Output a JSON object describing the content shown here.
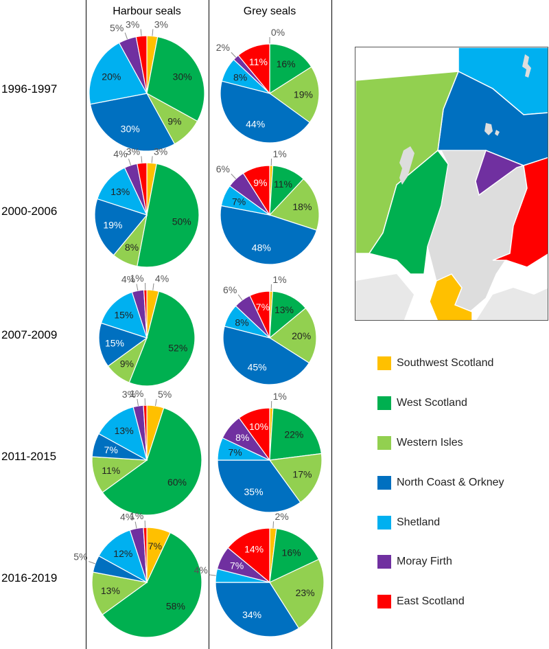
{
  "columns": [
    "Harbour seals",
    "Grey seals"
  ],
  "periods": [
    "1996-1997",
    "2000-2006",
    "2007-2009",
    "2011-2015",
    "2016-2019"
  ],
  "regions": [
    {
      "name": "Southwest Scotland",
      "color": "#FFC000"
    },
    {
      "name": "West Scotland",
      "color": "#00B050"
    },
    {
      "name": "Western Isles",
      "color": "#92D050"
    },
    {
      "name": "North Coast & Orkney",
      "color": "#0070C0"
    },
    {
      "name": "Shetland",
      "color": "#00B0F0"
    },
    {
      "name": "Moray Firth",
      "color": "#7030A0"
    },
    {
      "name": "East Scotland",
      "color": "#FF0000"
    }
  ],
  "chart_data": {
    "type": "pie",
    "categories": [
      "Southwest Scotland",
      "West Scotland",
      "Western Isles",
      "North Coast & Orkney",
      "Shetland",
      "Moray Firth",
      "East Scotland"
    ],
    "unit": "%",
    "series": [
      {
        "name": "Harbour seals",
        "period": "1996-1997",
        "values": [
          3,
          30,
          9,
          30,
          20,
          5,
          3
        ]
      },
      {
        "name": "Harbour seals",
        "period": "2000-2006",
        "values": [
          3,
          50,
          8,
          19,
          13,
          4,
          3
        ]
      },
      {
        "name": "Harbour seals",
        "period": "2007-2009",
        "values": [
          4,
          52,
          9,
          15,
          15,
          4,
          1
        ]
      },
      {
        "name": "Harbour seals",
        "period": "2011-2015",
        "values": [
          5,
          60,
          11,
          7,
          13,
          3,
          1
        ]
      },
      {
        "name": "Harbour seals",
        "period": "2016-2019",
        "values": [
          7,
          58,
          13,
          5,
          12,
          4,
          1
        ]
      },
      {
        "name": "Grey seals",
        "period": "1996-1997",
        "values": [
          0,
          16,
          19,
          44,
          8,
          2,
          11
        ]
      },
      {
        "name": "Grey seals",
        "period": "2000-2006",
        "values": [
          1,
          11,
          18,
          48,
          7,
          6,
          9
        ]
      },
      {
        "name": "Grey seals",
        "period": "2007-2009",
        "values": [
          1,
          13,
          20,
          45,
          8,
          6,
          7
        ]
      },
      {
        "name": "Grey seals",
        "period": "2011-2015",
        "values": [
          1,
          22,
          17,
          35,
          7,
          8,
          10
        ]
      },
      {
        "name": "Grey seals",
        "period": "2016-2019",
        "values": [
          2,
          16,
          23,
          34,
          4,
          7,
          14
        ]
      }
    ],
    "legend_position": "right"
  }
}
